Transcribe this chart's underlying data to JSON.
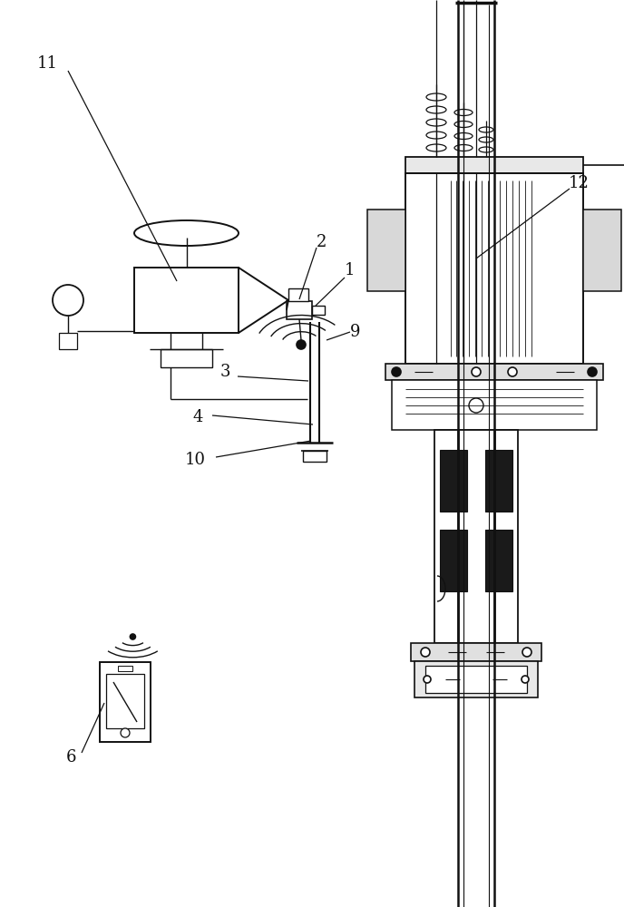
{
  "bg_color": "#ffffff",
  "lc": "#111111",
  "label_fs": 13,
  "figsize": [
    6.88,
    10.0
  ],
  "dpi": 100
}
